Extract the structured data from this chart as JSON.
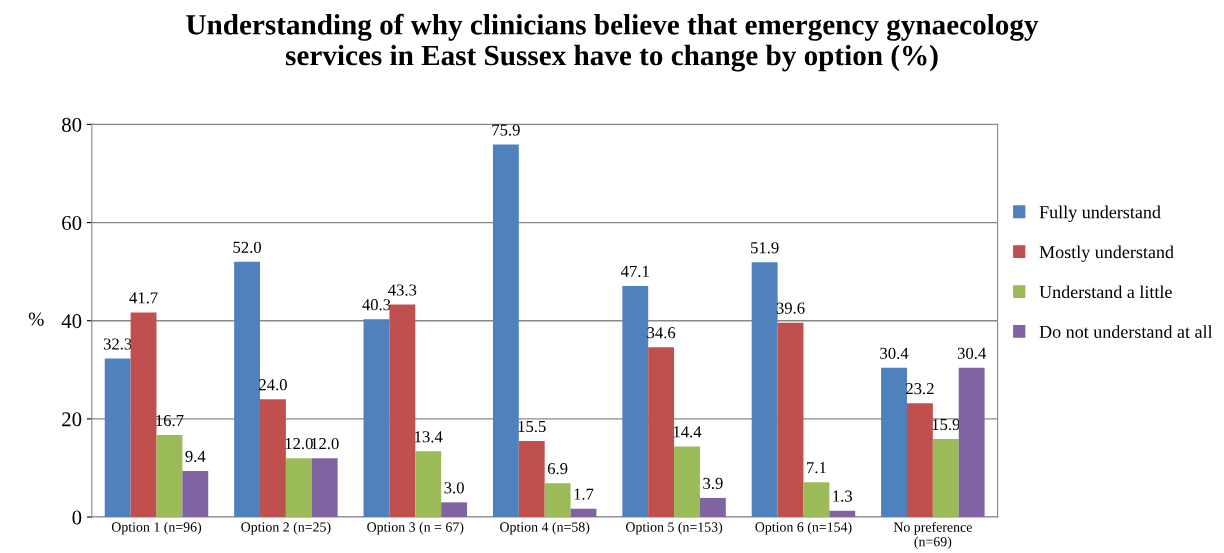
{
  "chart_data": {
    "type": "bar",
    "title": "Understanding of why clinicians believe that emergency gynaecology\nservices in East Sussex have to change by option (%)",
    "ylabel": "%",
    "categories": [
      "Option 1 (n=96)",
      "Option 2 (n=25)",
      "Option 3 (n = 67)",
      "Option 4 (n=58)",
      "Option 5 (n=153)",
      "Option 6 (n=154)",
      "No preference\n(n=69)"
    ],
    "series": [
      {
        "name": "Fully understand",
        "color": "#4f81bd",
        "values": [
          32.3,
          52.0,
          40.3,
          75.9,
          47.1,
          51.9,
          30.4
        ],
        "value_labels": [
          "32.3",
          "52.0",
          "40.3",
          "75.9",
          "47.1",
          "51.9",
          "30.4"
        ]
      },
      {
        "name": "Mostly understand",
        "color": "#c0504d",
        "values": [
          41.7,
          24.0,
          43.3,
          15.5,
          34.6,
          39.6,
          23.2
        ],
        "value_labels": [
          "41.7",
          "24.0",
          "43.3",
          "15.5",
          "34.6",
          "39.6",
          "23.2"
        ]
      },
      {
        "name": "Understand a little",
        "color": "#9bbb59",
        "values": [
          16.7,
          12.0,
          13.4,
          6.9,
          14.4,
          7.1,
          15.9
        ],
        "value_labels": [
          "16.7",
          "12.0",
          "13.4",
          "6.9",
          "14.4",
          "7.1",
          "15.9"
        ]
      },
      {
        "name": "Do not understand at all",
        "color": "#8064a2",
        "values": [
          9.4,
          12.0,
          3.0,
          1.7,
          3.9,
          1.3,
          30.4
        ],
        "value_labels": [
          "9.4",
          "12.0",
          "3.0",
          "1.7",
          "3.9",
          "1.3",
          "30.4"
        ]
      }
    ],
    "ylim": [
      0,
      80
    ],
    "yticks": [
      0,
      20,
      40,
      60,
      80
    ],
    "grid": "y",
    "legend": "right"
  }
}
